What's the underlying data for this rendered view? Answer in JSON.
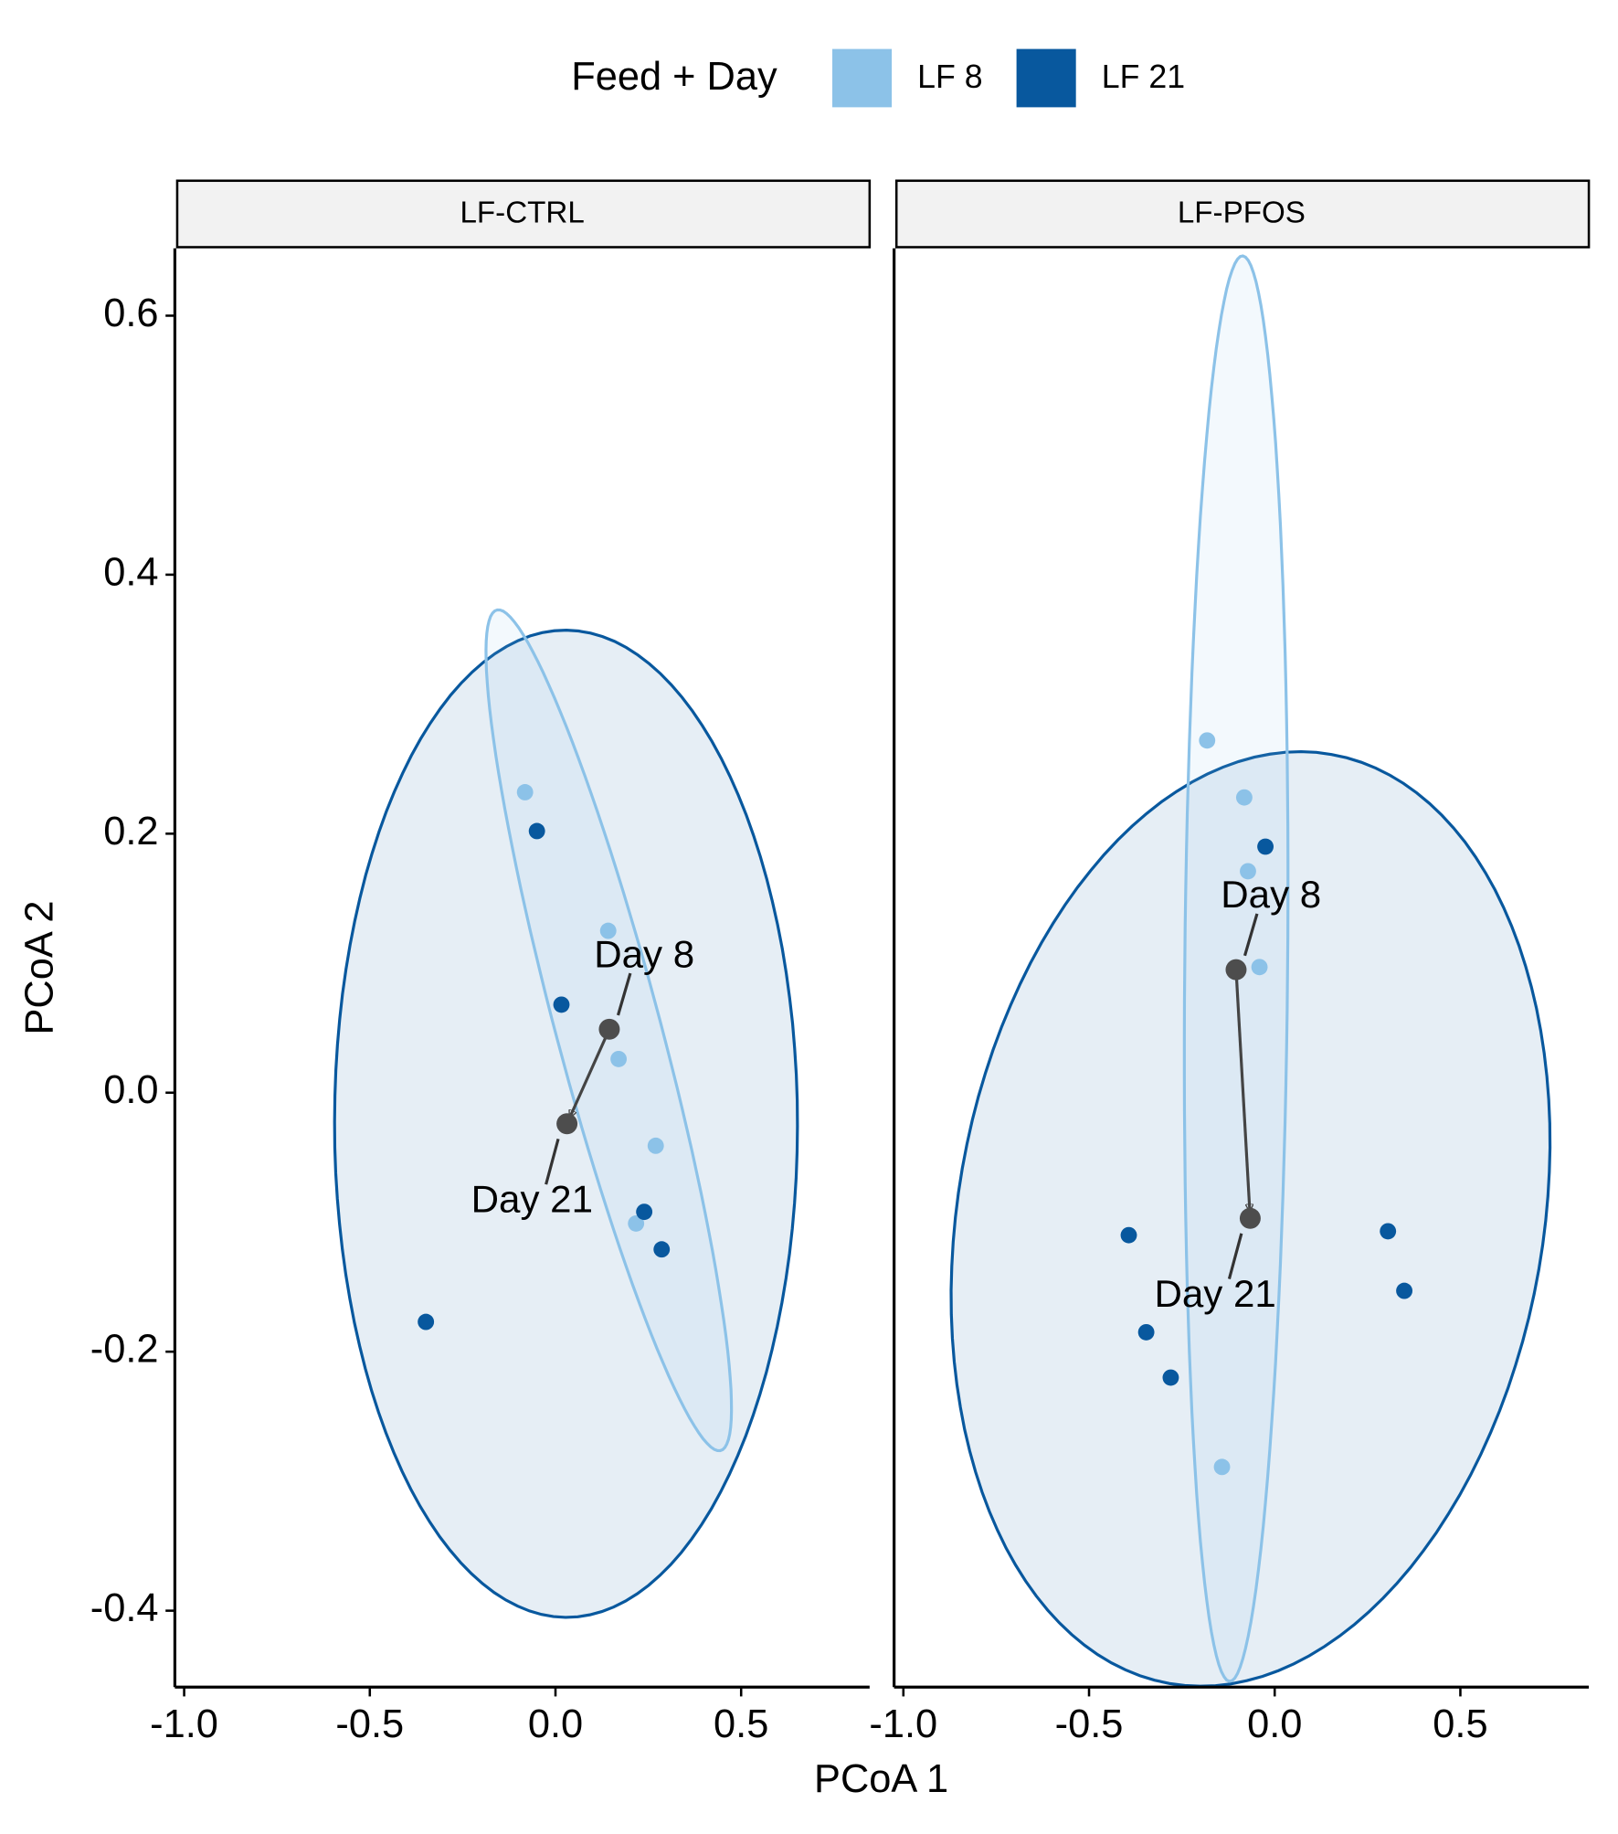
{
  "chart_data": [
    {
      "type": "scatter",
      "facet": "LF-CTRL",
      "legend_title": "Feed + Day",
      "x_label": "PCoA 1",
      "y_label": "PCoA 2",
      "series": [
        {
          "name": "LF 8",
          "color": "#8cc2e8",
          "x": [
            -0.082,
            0.142,
            0.17,
            0.27,
            0.217
          ],
          "y": [
            0.232,
            0.125,
            0.026,
            -0.041,
            -0.101
          ]
        },
        {
          "name": "LF 21",
          "color": "#08589e",
          "x": [
            -0.05,
            0.016,
            0.239,
            0.286,
            -0.349
          ],
          "y": [
            0.202,
            0.068,
            -0.092,
            -0.121,
            -0.177
          ]
        }
      ],
      "centroids": {
        "labels": [
          "Day 8",
          "Day 21"
        ],
        "x": [
          0.145,
          0.031
        ],
        "y": [
          0.049,
          -0.024
        ]
      },
      "xlim": [
        -1.025,
        0.846
      ],
      "ylim": [
        -0.459,
        0.652
      ],
      "xticks": [
        {
          "value": -1,
          "label": "-1.0"
        },
        -0.5,
        {
          "value": 0,
          "label": "0.0"
        },
        0.5
      ],
      "yticks": [
        -0.4,
        -0.2,
        {
          "value": 0,
          "label": "0.0"
        },
        0.2,
        0.4,
        0.6
      ]
    },
    {
      "type": "scatter",
      "facet": "LF-PFOS",
      "series": [
        {
          "name": "LF 8",
          "color": "#8cc2e8",
          "x": [
            -0.182,
            -0.082,
            -0.072,
            -0.041,
            -0.142
          ],
          "y": [
            0.272,
            0.228,
            0.171,
            0.097,
            -0.289
          ]
        },
        {
          "name": "LF 21",
          "color": "#08589e",
          "x": [
            -0.025,
            -0.393,
            -0.346,
            -0.28,
            0.305,
            0.349
          ],
          "y": [
            0.19,
            -0.11,
            -0.185,
            -0.22,
            -0.107,
            -0.153
          ]
        }
      ],
      "centroids": {
        "labels": [
          "Day 8",
          "Day 21"
        ],
        "x": [
          -0.104,
          -0.066
        ],
        "y": [
          0.095,
          -0.097
        ]
      },
      "xlim": [
        -1.025,
        0.846
      ],
      "ylim": [
        -0.459,
        0.652
      ],
      "xticks": [
        {
          "value": -1,
          "label": "-1.0"
        },
        -0.5,
        {
          "value": 0,
          "label": "0.0"
        },
        0.5
      ]
    }
  ]
}
